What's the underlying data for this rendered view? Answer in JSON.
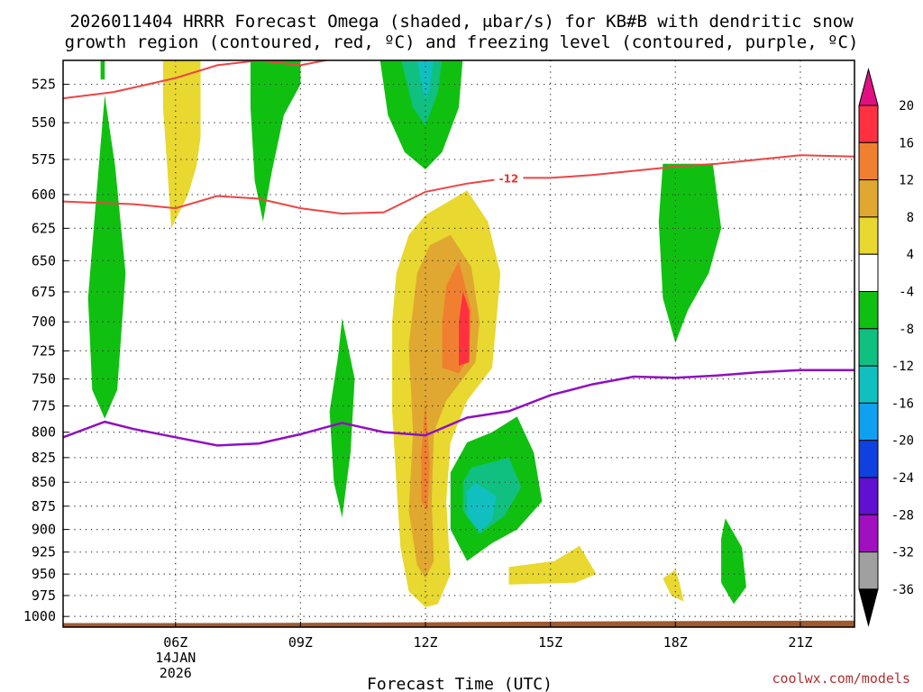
{
  "chart_data": {
    "type": "contour",
    "title_line1": "2026011404 HRRR Forecast Omega (shaded, μbar/s) for KB#B with dendritic snow",
    "title_line2": "growth region (contoured, red, ºC) and freezing level (contoured, purple, ºC)",
    "xlabel": "Forecast Time (UTC)",
    "credit": "coolwx.com/models",
    "x_range": [
      3.3,
      22.3
    ],
    "y_range": [
      510,
      1013
    ],
    "y_ticks": [
      "525",
      "550",
      "575",
      "600",
      "625",
      "650",
      "675",
      "700",
      "725",
      "750",
      "775",
      "800",
      "825",
      "850",
      "875",
      "900",
      "925",
      "950",
      "975",
      "1000"
    ],
    "x_ticks": [
      {
        "hour": 6,
        "label": "06Z",
        "sub1": "14JAN",
        "sub2": "2026"
      },
      {
        "hour": 9,
        "label": "09Z",
        "sub1": "",
        "sub2": ""
      },
      {
        "hour": 12,
        "label": "12Z",
        "sub1": "",
        "sub2": ""
      },
      {
        "hour": 15,
        "label": "15Z",
        "sub1": "",
        "sub2": ""
      },
      {
        "hour": 18,
        "label": "18Z",
        "sub1": "",
        "sub2": ""
      },
      {
        "hour": 21,
        "label": "21Z",
        "sub1": "",
        "sub2": ""
      }
    ],
    "colorbar": {
      "labels": [
        "20",
        "16",
        "12",
        "8",
        "4",
        "-4",
        "-8",
        "-12",
        "-16",
        "-20",
        "-24",
        "-28",
        "-32",
        "-36"
      ],
      "colors": [
        "#ff3040",
        "#f08030",
        "#e0a830",
        "#e8d830",
        "#ffffff",
        "#10c010",
        "#10c080",
        "#10c0c0",
        "#10a0f0",
        "#1040e0",
        "#6010d0",
        "#a010c0",
        "#a0a0a0"
      ],
      "top_color": "#e01080",
      "bottom_color": "#000000"
    },
    "legend": {
      "omega": "Omega (shaded, μbar/s)",
      "dgz": "dendritic snow growth region (contoured, red, ºC)",
      "freezing": "freezing level (contoured, purple, ºC)"
    },
    "dgz_label": "-12",
    "dgz_color": "#ee4444",
    "freezing_color": "#9010c0",
    "terrain_color": "#a05a30",
    "dgz_top": [
      [
        3.3,
        534
      ],
      [
        4.5,
        530
      ],
      [
        5.0,
        527
      ],
      [
        6.0,
        521
      ],
      [
        7.0,
        513
      ],
      [
        8.0,
        510
      ],
      [
        9.0,
        513
      ],
      [
        10.0,
        508
      ],
      [
        10.5,
        506
      ]
    ],
    "dgz_bottom": [
      [
        3.3,
        605
      ],
      [
        5.0,
        607
      ],
      [
        6.0,
        610
      ],
      [
        7.0,
        601
      ],
      [
        8.0,
        603
      ],
      [
        9.0,
        610
      ],
      [
        10.0,
        614
      ],
      [
        11.0,
        613
      ],
      [
        12.0,
        598
      ],
      [
        13.0,
        592
      ],
      [
        14.0,
        588
      ],
      [
        15.0,
        588
      ],
      [
        16.0,
        586
      ],
      [
        17.0,
        583
      ],
      [
        18.0,
        580
      ],
      [
        19.0,
        578
      ],
      [
        20.0,
        575
      ],
      [
        21.0,
        572
      ],
      [
        22.3,
        573
      ]
    ],
    "freezing_level": [
      [
        3.3,
        805
      ],
      [
        4.3,
        790
      ],
      [
        5.0,
        797
      ],
      [
        6.0,
        805
      ],
      [
        7.0,
        813
      ],
      [
        8.0,
        811
      ],
      [
        9.0,
        802
      ],
      [
        10.0,
        791
      ],
      [
        11.0,
        800
      ],
      [
        12.0,
        803
      ],
      [
        13.0,
        786
      ],
      [
        14.0,
        780
      ],
      [
        15.0,
        765
      ],
      [
        16.0,
        755
      ],
      [
        17.0,
        748
      ],
      [
        18.0,
        749
      ],
      [
        19.0,
        747
      ],
      [
        20.0,
        744
      ],
      [
        21.0,
        742
      ],
      [
        22.3,
        742
      ]
    ],
    "terrain": [
      [
        3.3,
        1008
      ],
      [
        7.0,
        1008
      ],
      [
        12.0,
        1007
      ],
      [
        16.0,
        1006
      ],
      [
        22.3,
        1005
      ]
    ],
    "omega_regions": [
      {
        "level": "-4",
        "color": "#10c010",
        "points": [
          [
            4.2,
            508
          ],
          [
            4.3,
            508
          ],
          [
            4.3,
            522
          ],
          [
            4.2,
            522
          ]
        ]
      },
      {
        "level": "-4",
        "color": "#10c010",
        "points": [
          [
            4.3,
            532
          ],
          [
            4.55,
            580
          ],
          [
            4.8,
            660
          ],
          [
            4.6,
            760
          ],
          [
            4.3,
            787
          ],
          [
            4.0,
            760
          ],
          [
            3.9,
            680
          ],
          [
            4.1,
            600
          ]
        ]
      },
      {
        "level": "4",
        "color": "#e8d830",
        "points": [
          [
            5.7,
            508
          ],
          [
            6.6,
            508
          ],
          [
            6.6,
            560
          ],
          [
            6.5,
            580
          ],
          [
            6.3,
            600
          ],
          [
            5.9,
            625
          ],
          [
            5.8,
            580
          ],
          [
            5.7,
            540
          ]
        ]
      },
      {
        "level": "-4",
        "color": "#10c010",
        "points": [
          [
            7.8,
            508
          ],
          [
            9.0,
            508
          ],
          [
            9.0,
            525
          ],
          [
            8.6,
            545
          ],
          [
            8.3,
            585
          ],
          [
            8.1,
            620
          ],
          [
            7.9,
            590
          ],
          [
            7.8,
            540
          ]
        ]
      },
      {
        "level": "-4",
        "color": "#10c010",
        "points": [
          [
            10.9,
            508
          ],
          [
            12.9,
            508
          ],
          [
            12.8,
            540
          ],
          [
            12.4,
            570
          ],
          [
            12.0,
            582
          ],
          [
            11.5,
            570
          ],
          [
            11.1,
            545
          ]
        ]
      },
      {
        "level": "-8",
        "color": "#10c080",
        "points": [
          [
            11.4,
            508
          ],
          [
            12.4,
            508
          ],
          [
            12.3,
            530
          ],
          [
            12.0,
            552
          ],
          [
            11.7,
            540
          ]
        ]
      },
      {
        "level": "-12",
        "color": "#10c0c0",
        "points": [
          [
            11.8,
            508
          ],
          [
            12.2,
            508
          ],
          [
            12.1,
            528
          ],
          [
            12.0,
            535
          ],
          [
            11.9,
            525
          ]
        ]
      },
      {
        "level": "-4",
        "color": "#10c010",
        "points": [
          [
            10.0,
            697
          ],
          [
            10.3,
            750
          ],
          [
            10.2,
            820
          ],
          [
            10.0,
            887
          ],
          [
            9.8,
            850
          ],
          [
            9.7,
            780
          ],
          [
            9.9,
            730
          ]
        ]
      },
      {
        "level": "4",
        "color": "#e8d830",
        "points": [
          [
            13.0,
            597
          ],
          [
            13.5,
            620
          ],
          [
            13.8,
            660
          ],
          [
            13.7,
            700
          ],
          [
            13.6,
            740
          ],
          [
            13.0,
            770
          ],
          [
            12.6,
            810
          ],
          [
            12.5,
            870
          ],
          [
            12.6,
            950
          ],
          [
            12.3,
            985
          ],
          [
            12.0,
            989
          ],
          [
            11.6,
            970
          ],
          [
            11.4,
            920
          ],
          [
            11.3,
            850
          ],
          [
            11.2,
            780
          ],
          [
            11.2,
            700
          ],
          [
            11.3,
            660
          ],
          [
            11.6,
            630
          ],
          [
            12.0,
            615
          ]
        ]
      },
      {
        "level": "8",
        "color": "#e0a830",
        "points": [
          [
            12.6,
            630
          ],
          [
            13.1,
            655
          ],
          [
            13.3,
            700
          ],
          [
            13.2,
            735
          ],
          [
            12.5,
            770
          ],
          [
            12.2,
            800
          ],
          [
            12.15,
            870
          ],
          [
            12.2,
            935
          ],
          [
            12.0,
            955
          ],
          [
            11.8,
            940
          ],
          [
            11.6,
            880
          ],
          [
            11.7,
            800
          ],
          [
            11.6,
            720
          ],
          [
            11.8,
            660
          ],
          [
            12.1,
            638
          ]
        ]
      },
      {
        "level": "12",
        "color": "#f08030",
        "points": [
          [
            12.8,
            650
          ],
          [
            13.1,
            690
          ],
          [
            13.05,
            730
          ],
          [
            12.8,
            745
          ],
          [
            12.4,
            740
          ],
          [
            12.4,
            700
          ],
          [
            12.5,
            670
          ]
        ]
      },
      {
        "level": "12",
        "color": "#f08030",
        "points": [
          [
            12.0,
            770
          ],
          [
            12.1,
            830
          ],
          [
            12.05,
            880
          ],
          [
            11.9,
            870
          ],
          [
            11.9,
            820
          ]
        ]
      },
      {
        "level": "16",
        "color": "#ff3040",
        "points": [
          [
            12.9,
            675
          ],
          [
            13.05,
            690
          ],
          [
            13.05,
            735
          ],
          [
            12.8,
            738
          ],
          [
            12.8,
            700
          ]
        ]
      },
      {
        "level": "-4",
        "color": "#10c010",
        "points": [
          [
            13.0,
            810
          ],
          [
            13.6,
            800
          ],
          [
            14.2,
            785
          ],
          [
            14.6,
            820
          ],
          [
            14.8,
            870
          ],
          [
            14.2,
            900
          ],
          [
            13.6,
            915
          ],
          [
            13.0,
            935
          ],
          [
            12.6,
            900
          ],
          [
            12.6,
            840
          ]
        ]
      },
      {
        "level": "-8",
        "color": "#10c080",
        "points": [
          [
            13.1,
            835
          ],
          [
            14.0,
            825
          ],
          [
            14.3,
            855
          ],
          [
            13.9,
            885
          ],
          [
            13.3,
            905
          ],
          [
            12.9,
            880
          ],
          [
            12.9,
            850
          ]
        ]
      },
      {
        "level": "-12",
        "color": "#10c0c0",
        "points": [
          [
            13.2,
            850
          ],
          [
            13.7,
            865
          ],
          [
            13.6,
            890
          ],
          [
            13.3,
            902
          ],
          [
            13.0,
            885
          ],
          [
            13.0,
            860
          ]
        ]
      },
      {
        "level": "4",
        "color": "#e8d830",
        "points": [
          [
            14.0,
            942
          ],
          [
            15.1,
            935
          ],
          [
            15.7,
            918
          ],
          [
            16.1,
            950
          ],
          [
            15.6,
            960
          ],
          [
            14.0,
            962
          ]
        ]
      },
      {
        "level": "-4",
        "color": "#10c010",
        "points": [
          [
            17.7,
            578
          ],
          [
            18.9,
            578
          ],
          [
            19.1,
            625
          ],
          [
            18.8,
            660
          ],
          [
            18.3,
            690
          ],
          [
            18.0,
            718
          ],
          [
            17.7,
            680
          ],
          [
            17.6,
            620
          ]
        ]
      },
      {
        "level": "4",
        "color": "#e8d830",
        "points": [
          [
            18.0,
            945
          ],
          [
            18.1,
            960
          ],
          [
            18.2,
            982
          ],
          [
            17.9,
            975
          ],
          [
            17.7,
            955
          ]
        ]
      },
      {
        "level": "-4",
        "color": "#10c010",
        "points": [
          [
            19.2,
            888
          ],
          [
            19.6,
            920
          ],
          [
            19.7,
            965
          ],
          [
            19.4,
            985
          ],
          [
            19.1,
            960
          ],
          [
            19.1,
            910
          ]
        ]
      }
    ]
  }
}
